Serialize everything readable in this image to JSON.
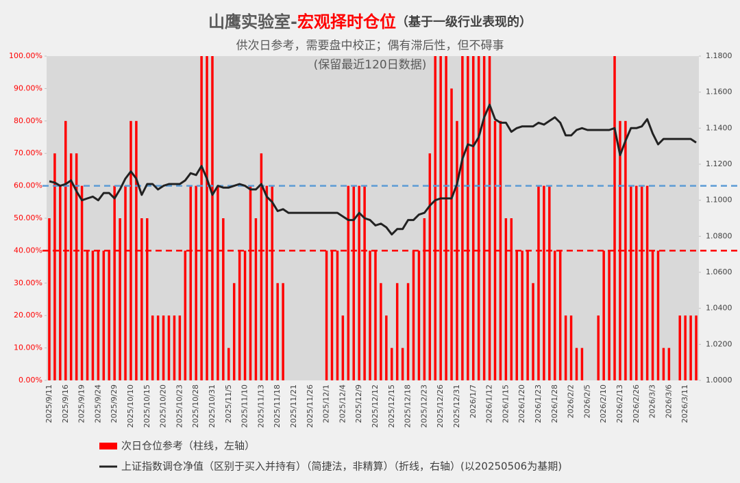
{
  "chart_data": {
    "type": "bar_line",
    "title": "山鹰实验室-",
    "title_highlight": "宏观择时仓位",
    "title_note": "（基于一级行业表现的）",
    "subtitle": [
      "供次日参考，需要盘中校正；偶有滞后性，但不碍事",
      "(保留最近120日数据)"
    ],
    "categories": [
      "2025/9/11",
      null,
      null,
      "2025/9/16",
      null,
      null,
      "2025/9/19",
      null,
      null,
      "2025/9/24",
      null,
      null,
      "2025/9/29",
      null,
      null,
      "2025/10/10",
      null,
      null,
      "2025/10/15",
      null,
      null,
      "2025/10/20",
      null,
      null,
      "2025/10/23",
      null,
      null,
      "2025/10/28",
      null,
      null,
      "2025/10/31",
      null,
      null,
      "2025/11/5",
      null,
      null,
      "2025/11/10",
      null,
      null,
      "2025/11/13",
      null,
      null,
      "2025/11/18",
      null,
      null,
      "2025/11/21",
      null,
      null,
      "2025/11/26",
      null,
      null,
      "2025/12/1",
      null,
      null,
      "2025/12/4",
      null,
      null,
      "2025/12/9",
      null,
      null,
      "2025/12/12",
      null,
      null,
      "2025/12/15",
      null,
      null,
      "2025/12/18",
      null,
      null,
      "2025/12/23",
      null,
      null,
      "2025/12/26",
      null,
      null,
      "2025/12/31",
      null,
      null,
      "2026/1/7",
      null,
      null,
      "2026/1/12",
      null,
      null,
      "2026/1/15",
      null,
      null,
      "2026/1/20",
      null,
      null,
      "2026/1/23",
      null,
      null,
      "2026/1/28",
      null,
      null,
      "2026/2/2",
      null,
      null,
      "2026/2/5",
      null,
      null,
      "2026/2/10",
      null,
      null,
      "2026/2/13",
      null,
      null,
      "2026/2/26",
      null,
      null,
      "2026/3/3",
      null,
      null,
      "2026/3/6",
      null,
      null,
      "2026/3/11",
      null,
      null
    ],
    "series": [
      {
        "name": "次日仓位参考（柱线，左轴）",
        "type": "bar",
        "color": "#ff0000",
        "axis": "y",
        "values": [
          50,
          70,
          60,
          80,
          70,
          70,
          60,
          40,
          40,
          40,
          40,
          40,
          60,
          50,
          60,
          80,
          80,
          50,
          50,
          20,
          20,
          20,
          20,
          20,
          20,
          40,
          60,
          60,
          100,
          100,
          100,
          60,
          50,
          10,
          30,
          40,
          40,
          60,
          50,
          70,
          60,
          60,
          30,
          30,
          0,
          0,
          0,
          0,
          0,
          0,
          0,
          40,
          40,
          40,
          20,
          60,
          60,
          60,
          60,
          40,
          40,
          30,
          20,
          10,
          30,
          10,
          30,
          40,
          40,
          50,
          70,
          100,
          100,
          100,
          90,
          80,
          100,
          100,
          100,
          100,
          100,
          100,
          80,
          80,
          50,
          50,
          40,
          40,
          40,
          30,
          60,
          60,
          60,
          40,
          40,
          20,
          20,
          10,
          10,
          0,
          0,
          20,
          40,
          40,
          100,
          80,
          80,
          60,
          60,
          60,
          60,
          40,
          40,
          10,
          10,
          0,
          20,
          20,
          20,
          20
        ]
      },
      {
        "name": "上证指数调仓净值（区别于买入并持有）（简捷法，非精算）（折线，右轴）(以20250506为基期)",
        "type": "line",
        "color": "#222222",
        "axis": "y2",
        "values": [
          1.1105,
          1.1098,
          1.108,
          1.109,
          1.111,
          1.105,
          1.1,
          1.101,
          1.102,
          1.1,
          1.104,
          1.104,
          1.101,
          1.106,
          1.112,
          1.116,
          1.112,
          1.103,
          1.109,
          1.109,
          1.106,
          1.108,
          1.109,
          1.109,
          1.109,
          1.111,
          1.115,
          1.114,
          1.119,
          1.112,
          1.103,
          1.108,
          1.107,
          1.107,
          1.108,
          1.109,
          1.108,
          1.106,
          1.106,
          1.109,
          1.102,
          1.099,
          1.094,
          1.095,
          1.093,
          1.093,
          1.093,
          1.093,
          1.093,
          1.093,
          1.093,
          1.093,
          1.093,
          1.093,
          1.091,
          1.089,
          1.089,
          1.093,
          1.09,
          1.089,
          1.086,
          1.087,
          1.085,
          1.081,
          1.084,
          1.084,
          1.089,
          1.089,
          1.092,
          1.093,
          1.097,
          1.1,
          1.101,
          1.101,
          1.101,
          1.109,
          1.123,
          1.131,
          1.13,
          1.135,
          1.146,
          1.153,
          1.145,
          1.143,
          1.143,
          1.138,
          1.14,
          1.141,
          1.141,
          1.141,
          1.143,
          1.142,
          1.144,
          1.146,
          1.143,
          1.136,
          1.136,
          1.139,
          1.14,
          1.139,
          1.139,
          1.139,
          1.139,
          1.139,
          1.14,
          1.125,
          1.133,
          1.14,
          1.14,
          1.141,
          1.145,
          1.137,
          1.131,
          1.134,
          1.134,
          1.134,
          1.134,
          1.134,
          1.134,
          1.132
        ]
      }
    ],
    "reference_lines": [
      {
        "value": 60,
        "axis": "y",
        "color": "#5b9bd5"
      },
      {
        "value": 40,
        "axis": "y",
        "color": "#ff0000"
      }
    ],
    "ylim": [
      0,
      100
    ],
    "yticks": [
      {
        "value": 0,
        "label": "0.00%"
      },
      {
        "value": 10,
        "label": "10.00%"
      },
      {
        "value": 20,
        "label": "20.00%"
      },
      {
        "value": 30,
        "label": "30.00%"
      },
      {
        "value": 40,
        "label": "40.00%"
      },
      {
        "value": 50,
        "label": "50.00%"
      },
      {
        "value": 60,
        "label": "60.00%"
      },
      {
        "value": 70,
        "label": "70.00%"
      },
      {
        "value": 80,
        "label": "80.00%"
      },
      {
        "value": 90,
        "label": "90.00%"
      },
      {
        "value": 100,
        "label": "100.00%"
      }
    ],
    "y2lim": [
      1.0,
      1.18
    ],
    "y2ticks": [
      {
        "value": 1.0,
        "label": "1.0000"
      },
      {
        "value": 1.02,
        "label": "1.0200"
      },
      {
        "value": 1.04,
        "label": "1.0400"
      },
      {
        "value": 1.06,
        "label": "1.0600"
      },
      {
        "value": 1.08,
        "label": "1.0800"
      },
      {
        "value": 1.1,
        "label": "1.1000"
      },
      {
        "value": 1.12,
        "label": "1.1200"
      },
      {
        "value": 1.14,
        "label": "1.1400"
      },
      {
        "value": 1.16,
        "label": "1.1600"
      },
      {
        "value": 1.18,
        "label": "1.1800"
      }
    ],
    "legend": "bottom-left"
  }
}
